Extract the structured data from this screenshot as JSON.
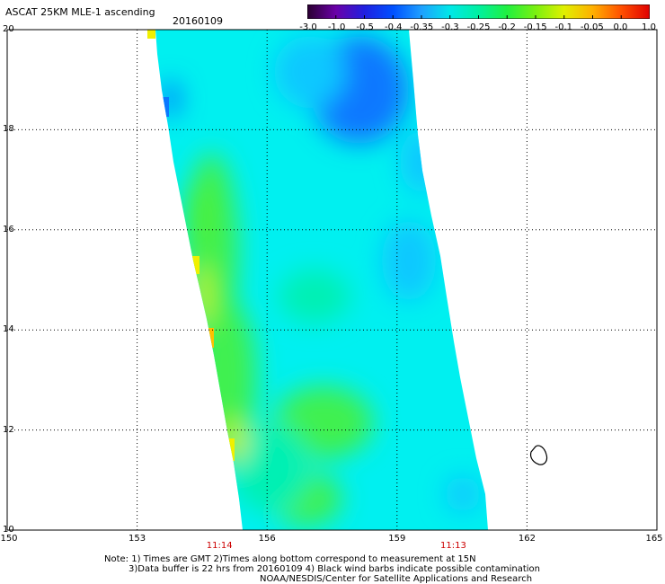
{
  "header": {
    "title": "ASCAT 25KM MLE-1 ascending",
    "date": "20160109"
  },
  "colorbar": {
    "labels": [
      "-3.0",
      "-1.0",
      "-0.5",
      "-0.4",
      "-0.35",
      "-0.3",
      "-0.25",
      "-0.2",
      "-0.15",
      "-0.1",
      "-0.05",
      "0.0",
      "1.0"
    ],
    "colors": [
      "#2a0030",
      "#6a00a8",
      "#2020e0",
      "#0050ff",
      "#1ea0ff",
      "#00e8e8",
      "#00f0a0",
      "#20f040",
      "#7af010",
      "#e0f000",
      "#ffb000",
      "#ff5000",
      "#e00000"
    ]
  },
  "map": {
    "lat_labels": [
      "20",
      "18",
      "16",
      "14",
      "12",
      "10"
    ],
    "lon_labels": [
      "150",
      "153",
      "156",
      "159",
      "162",
      "165"
    ],
    "lat_range": [
      10,
      20
    ],
    "lon_range": [
      150,
      165
    ],
    "grid": "dotted",
    "time_labels": [
      {
        "text": "11:14",
        "lon": 154.9
      },
      {
        "text": "11:13",
        "lon": 160.3
      }
    ],
    "land_outline": "small island near 162E 11.5N",
    "swath_colors": {
      "cyan": "#00f0f0",
      "light_blue": "#10c8ff",
      "blue": "#0a78ff",
      "aqua_green": "#00f0b4",
      "green": "#40f050",
      "bright_green": "#50f030",
      "yellow_green": "#c8f020",
      "yellow": "#f0f000",
      "orange": "#ffc000"
    }
  },
  "footer": {
    "note_line1": "Note: 1) Times are GMT 2)Times along bottom correspond to measurement at 15N",
    "note_line2": "3)Data buffer is 22 hrs from 20160109 4) Black wind barbs indicate possible contamination",
    "note_line3": "NOAA/NESDIS/Center for Satellite Applications and Research"
  }
}
